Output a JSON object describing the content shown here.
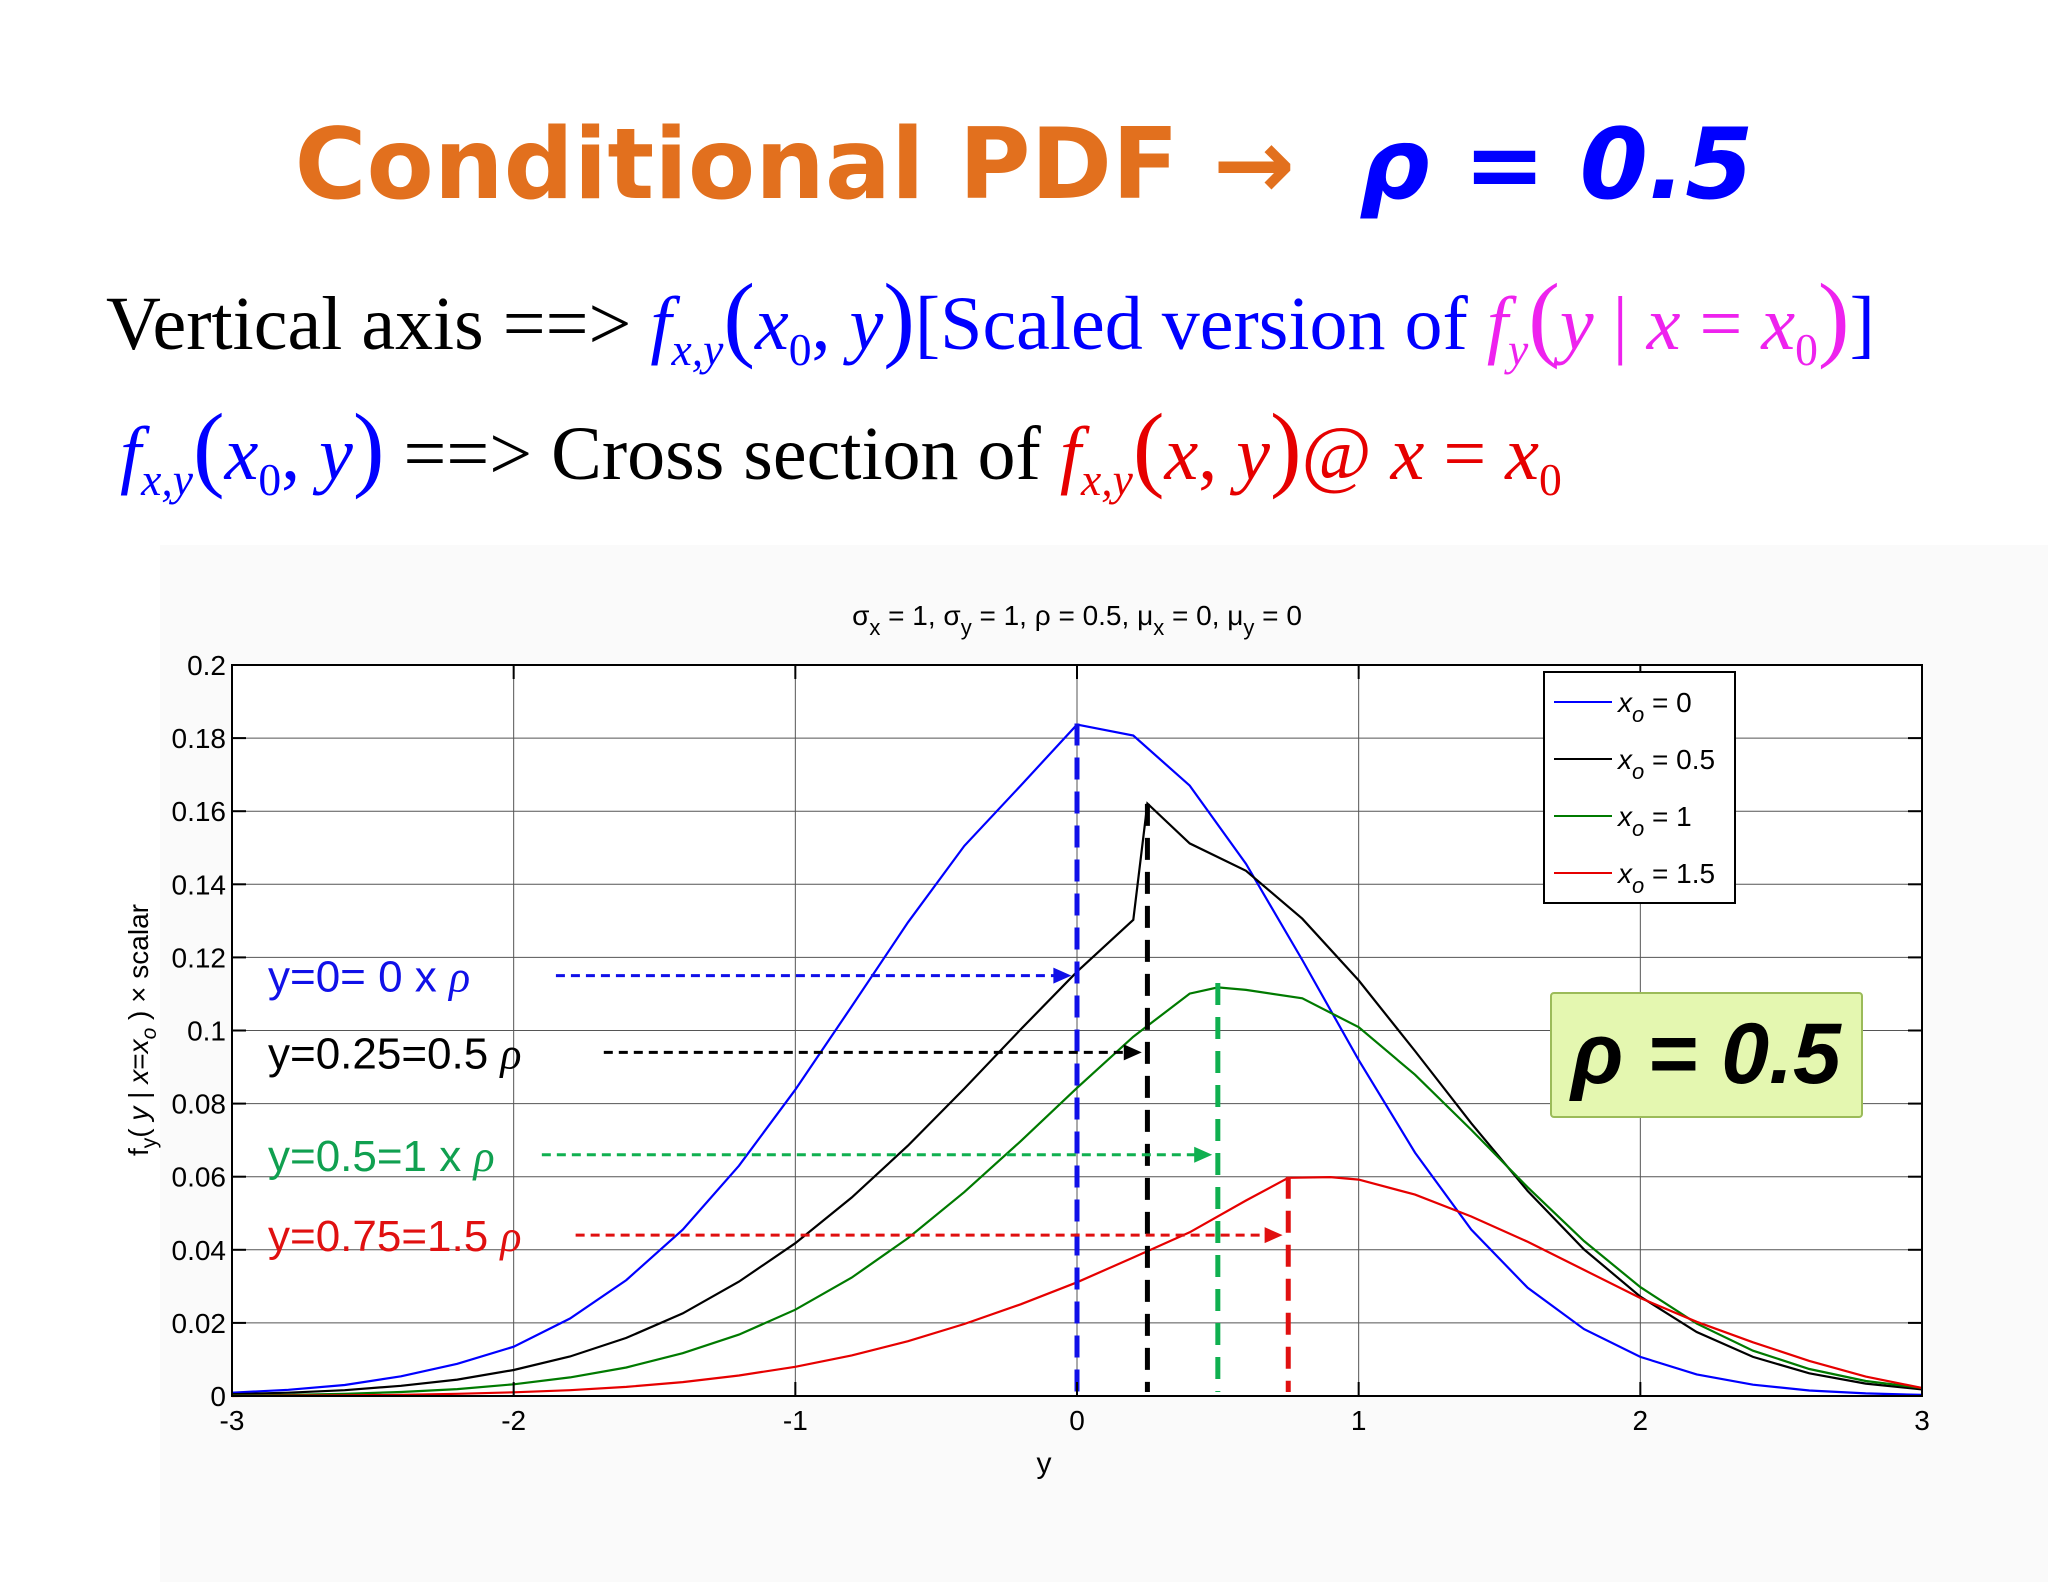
{
  "slide": {
    "title_main": "Conditional PDF",
    "title_arrow": "→",
    "title_rho": "ρ = 0.5",
    "eq1": {
      "lead": "Vertical axis ==>",
      "f": "f",
      "f_sub": "x,y",
      "open": "(",
      "arg1": "x",
      "arg1_sub": "0",
      "comma": ",",
      "arg2": "y",
      "close": ")",
      "bracket_text": "[Scaled version of",
      "f2": "f",
      "f2_sub": "y",
      "cond_open": "(",
      "cond_y": "y",
      "cond_bar": "|",
      "cond_x": "x",
      "cond_eq": "=",
      "cond_x0": "x",
      "cond_x0_sub": "0",
      "cond_close": ")",
      "bracket_end": "]"
    },
    "eq2": {
      "f": "f",
      "f_sub": "x,y",
      "open": "(",
      "arg1": "x",
      "arg1_sub": "0",
      "comma": ",",
      "arg2": "y",
      "close": ")",
      "mid": "==> Cross section of",
      "f2": "f",
      "f2_sub": "x,y",
      "open2": "(",
      "a": "x",
      "comma2": ",",
      "b": "y",
      "close2": ")",
      "at": "@",
      "x": "x",
      "eq": "=",
      "x0": "x",
      "x0_sub": "0"
    }
  },
  "colors": {
    "orange": "#e2701e",
    "blue": "#0000ff",
    "magenta": "#ee22ee",
    "red": "#e60000",
    "black": "#000000",
    "green": "#007a00",
    "dash_blue": "#1010e8",
    "dash_black": "#000000",
    "dash_green": "#10b050",
    "dash_red": "#e01010",
    "annot_green": "#10a050",
    "box_fill": "#e4f7b0",
    "box_border": "#9bbb59"
  },
  "chart_data": {
    "type": "line",
    "title": "σx = 1, σy = 1, ρ = 0.5, μx = 0, μy = 0",
    "title_parts": {
      "s1": "σ",
      "s1_sub": "x",
      "s1_val": " = 1, ",
      "s2": "σ",
      "s2_sub": "y",
      "s2_val": " = 1, ρ = 0.5, ",
      "m1": "μ",
      "m1_sub": "x",
      "m1_val": " = 0, ",
      "m2": "μ",
      "m2_sub": "y",
      "m2_val": " = 0"
    },
    "xlabel": "y",
    "ylabel": "fy( y | x=xo ) × scalar",
    "ylabel_parts": {
      "f": "f",
      "f_sub": "y",
      "open": "( ",
      "y": "y",
      "bar": " | ",
      "x": "x",
      "eq": "=",
      "xo": "x",
      "xo_sub": "o",
      "rest": " ) × scalar"
    },
    "xlim": [
      -3,
      3
    ],
    "ylim": [
      0,
      0.2
    ],
    "grid": true,
    "xticks": [
      -3,
      -2,
      -1,
      0,
      1,
      2,
      3
    ],
    "xtick_labels": [
      "-3",
      "-2",
      "-1",
      "0",
      "1",
      "2",
      "3"
    ],
    "yticks": [
      0,
      0.02,
      0.04,
      0.06,
      0.08,
      0.1,
      0.12,
      0.14,
      0.16,
      0.18,
      0.2
    ],
    "ytick_labels": [
      "0",
      "0.02",
      "0.04",
      "0.06",
      "0.08",
      "0.1",
      "0.12",
      "0.14",
      "0.16",
      "0.18",
      "0.2"
    ],
    "legend_position": "top-right",
    "series": [
      {
        "name": "xo = 0",
        "name_var": "x",
        "name_sub": "o",
        "name_val": " = 0",
        "color": "#0000ff",
        "x": [
          -3.0,
          -2.8,
          -2.6,
          -2.4,
          -2.2,
          -2.0,
          -1.8,
          -1.6,
          -1.4,
          -1.2,
          -1.0,
          -0.8,
          -0.6,
          -0.4,
          -0.2,
          0.0,
          0.2,
          0.4,
          0.6,
          0.8,
          1.0,
          1.2,
          1.4,
          1.6,
          1.8,
          2.0,
          2.2,
          2.4,
          2.6,
          2.8,
          3.0
        ],
        "y": [
          0.0009,
          0.0017,
          0.003,
          0.0054,
          0.0088,
          0.0135,
          0.0212,
          0.0317,
          0.0455,
          0.063,
          0.0838,
          0.1066,
          0.1296,
          0.1505,
          0.167,
          0.1837,
          0.1807,
          0.167,
          0.1456,
          0.1193,
          0.0919,
          0.0666,
          0.0455,
          0.0296,
          0.0183,
          0.0107,
          0.0059,
          0.0031,
          0.0015,
          0.0007,
          0.0003
        ]
      },
      {
        "name": "xo = 0.5",
        "name_var": "x",
        "name_sub": "o",
        "name_val": " = 0.5",
        "color": "#000000",
        "x": [
          -3.0,
          -2.8,
          -2.6,
          -2.4,
          -2.2,
          -2.0,
          -1.8,
          -1.6,
          -1.4,
          -1.2,
          -1.0,
          -0.8,
          -0.6,
          -0.4,
          -0.2,
          0.0,
          0.2,
          0.25,
          0.4,
          0.6,
          0.8,
          1.0,
          1.2,
          1.4,
          1.6,
          1.8,
          2.0,
          2.2,
          2.4,
          2.6,
          2.8,
          3.0
        ],
        "y": [
          0.0005,
          0.0009,
          0.0016,
          0.0028,
          0.0045,
          0.0071,
          0.0108,
          0.0159,
          0.0226,
          0.0313,
          0.0418,
          0.0543,
          0.0685,
          0.0841,
          0.1003,
          0.1161,
          0.1303,
          0.1621,
          0.1512,
          0.1437,
          0.1306,
          0.1137,
          0.0944,
          0.0746,
          0.0561,
          0.0401,
          0.0272,
          0.0175,
          0.0107,
          0.0062,
          0.0034,
          0.0018
        ]
      },
      {
        "name": "xo = 1",
        "name_var": "x",
        "name_sub": "o",
        "name_val": " = 1",
        "color": "#007a00",
        "x": [
          -3.0,
          -2.8,
          -2.6,
          -2.4,
          -2.2,
          -2.0,
          -1.8,
          -1.6,
          -1.4,
          -1.2,
          -1.0,
          -0.8,
          -0.6,
          -0.4,
          -0.2,
          0.0,
          0.2,
          0.4,
          0.5,
          0.6,
          0.8,
          1.0,
          1.2,
          1.4,
          1.6,
          1.8,
          2.0,
          2.2,
          2.4,
          2.6,
          2.8,
          3.0
        ],
        "y": [
          0.0001,
          0.0003,
          0.0006,
          0.0011,
          0.0019,
          0.0032,
          0.0051,
          0.0078,
          0.0117,
          0.0168,
          0.0236,
          0.0324,
          0.0432,
          0.0558,
          0.0697,
          0.0843,
          0.0983,
          0.1101,
          0.1118,
          0.1111,
          0.1088,
          0.1009,
          0.0879,
          0.0728,
          0.0571,
          0.0424,
          0.0298,
          0.0198,
          0.0124,
          0.0074,
          0.0041,
          0.0022
        ]
      },
      {
        "name": "xo = 1.5",
        "name_var": "x",
        "name_sub": "o",
        "name_val": " = 1.5",
        "color": "#e60000",
        "x": [
          -3.0,
          -2.8,
          -2.6,
          -2.4,
          -2.2,
          -2.0,
          -1.8,
          -1.6,
          -1.4,
          -1.2,
          -1.0,
          -0.8,
          -0.6,
          -0.4,
          -0.2,
          0.0,
          0.2,
          0.4,
          0.6,
          0.75,
          0.9,
          1.0,
          1.2,
          1.4,
          1.6,
          1.8,
          2.0,
          2.2,
          2.4,
          2.6,
          2.8,
          3.0
        ],
        "y": [
          0.0,
          0.0001,
          0.0002,
          0.0003,
          0.0006,
          0.001,
          0.0016,
          0.0025,
          0.0038,
          0.0056,
          0.008,
          0.0111,
          0.015,
          0.0197,
          0.0251,
          0.0311,
          0.0379,
          0.0448,
          0.0535,
          0.0597,
          0.0599,
          0.0592,
          0.0551,
          0.0491,
          0.0422,
          0.0345,
          0.0268,
          0.0203,
          0.0147,
          0.0096,
          0.0053,
          0.0022
        ]
      }
    ],
    "annotations": [
      {
        "text": "y=0= 0 x ",
        "rho": "ρ",
        "color": "#1010e8",
        "arrow_from_x": -1.85,
        "arrow_to_x": -0.02,
        "y": 0.115,
        "dash_x": 0.0,
        "dash_top": 0.184
      },
      {
        "text": "y=0.25=0.5 ",
        "rho": "ρ",
        "color": "#000000",
        "arrow_from_x": -1.68,
        "arrow_to_x": 0.23,
        "y": 0.094,
        "dash_x": 0.25,
        "dash_top": 0.162
      },
      {
        "text": "y=0.5=1 x ",
        "rho": "ρ",
        "color": "#10a050",
        "arrow_from_x": -1.9,
        "arrow_to_x": 0.48,
        "y": 0.066,
        "dash_x": 0.5,
        "dash_top": 0.113
      },
      {
        "text": "y=0.75=1.5 ",
        "rho": "ρ",
        "color": "#e01010",
        "arrow_from_x": -1.78,
        "arrow_to_x": 0.73,
        "y": 0.044,
        "dash_x": 0.75,
        "dash_top": 0.06
      }
    ],
    "rho_box": {
      "text": "ρ = 0.5"
    }
  }
}
